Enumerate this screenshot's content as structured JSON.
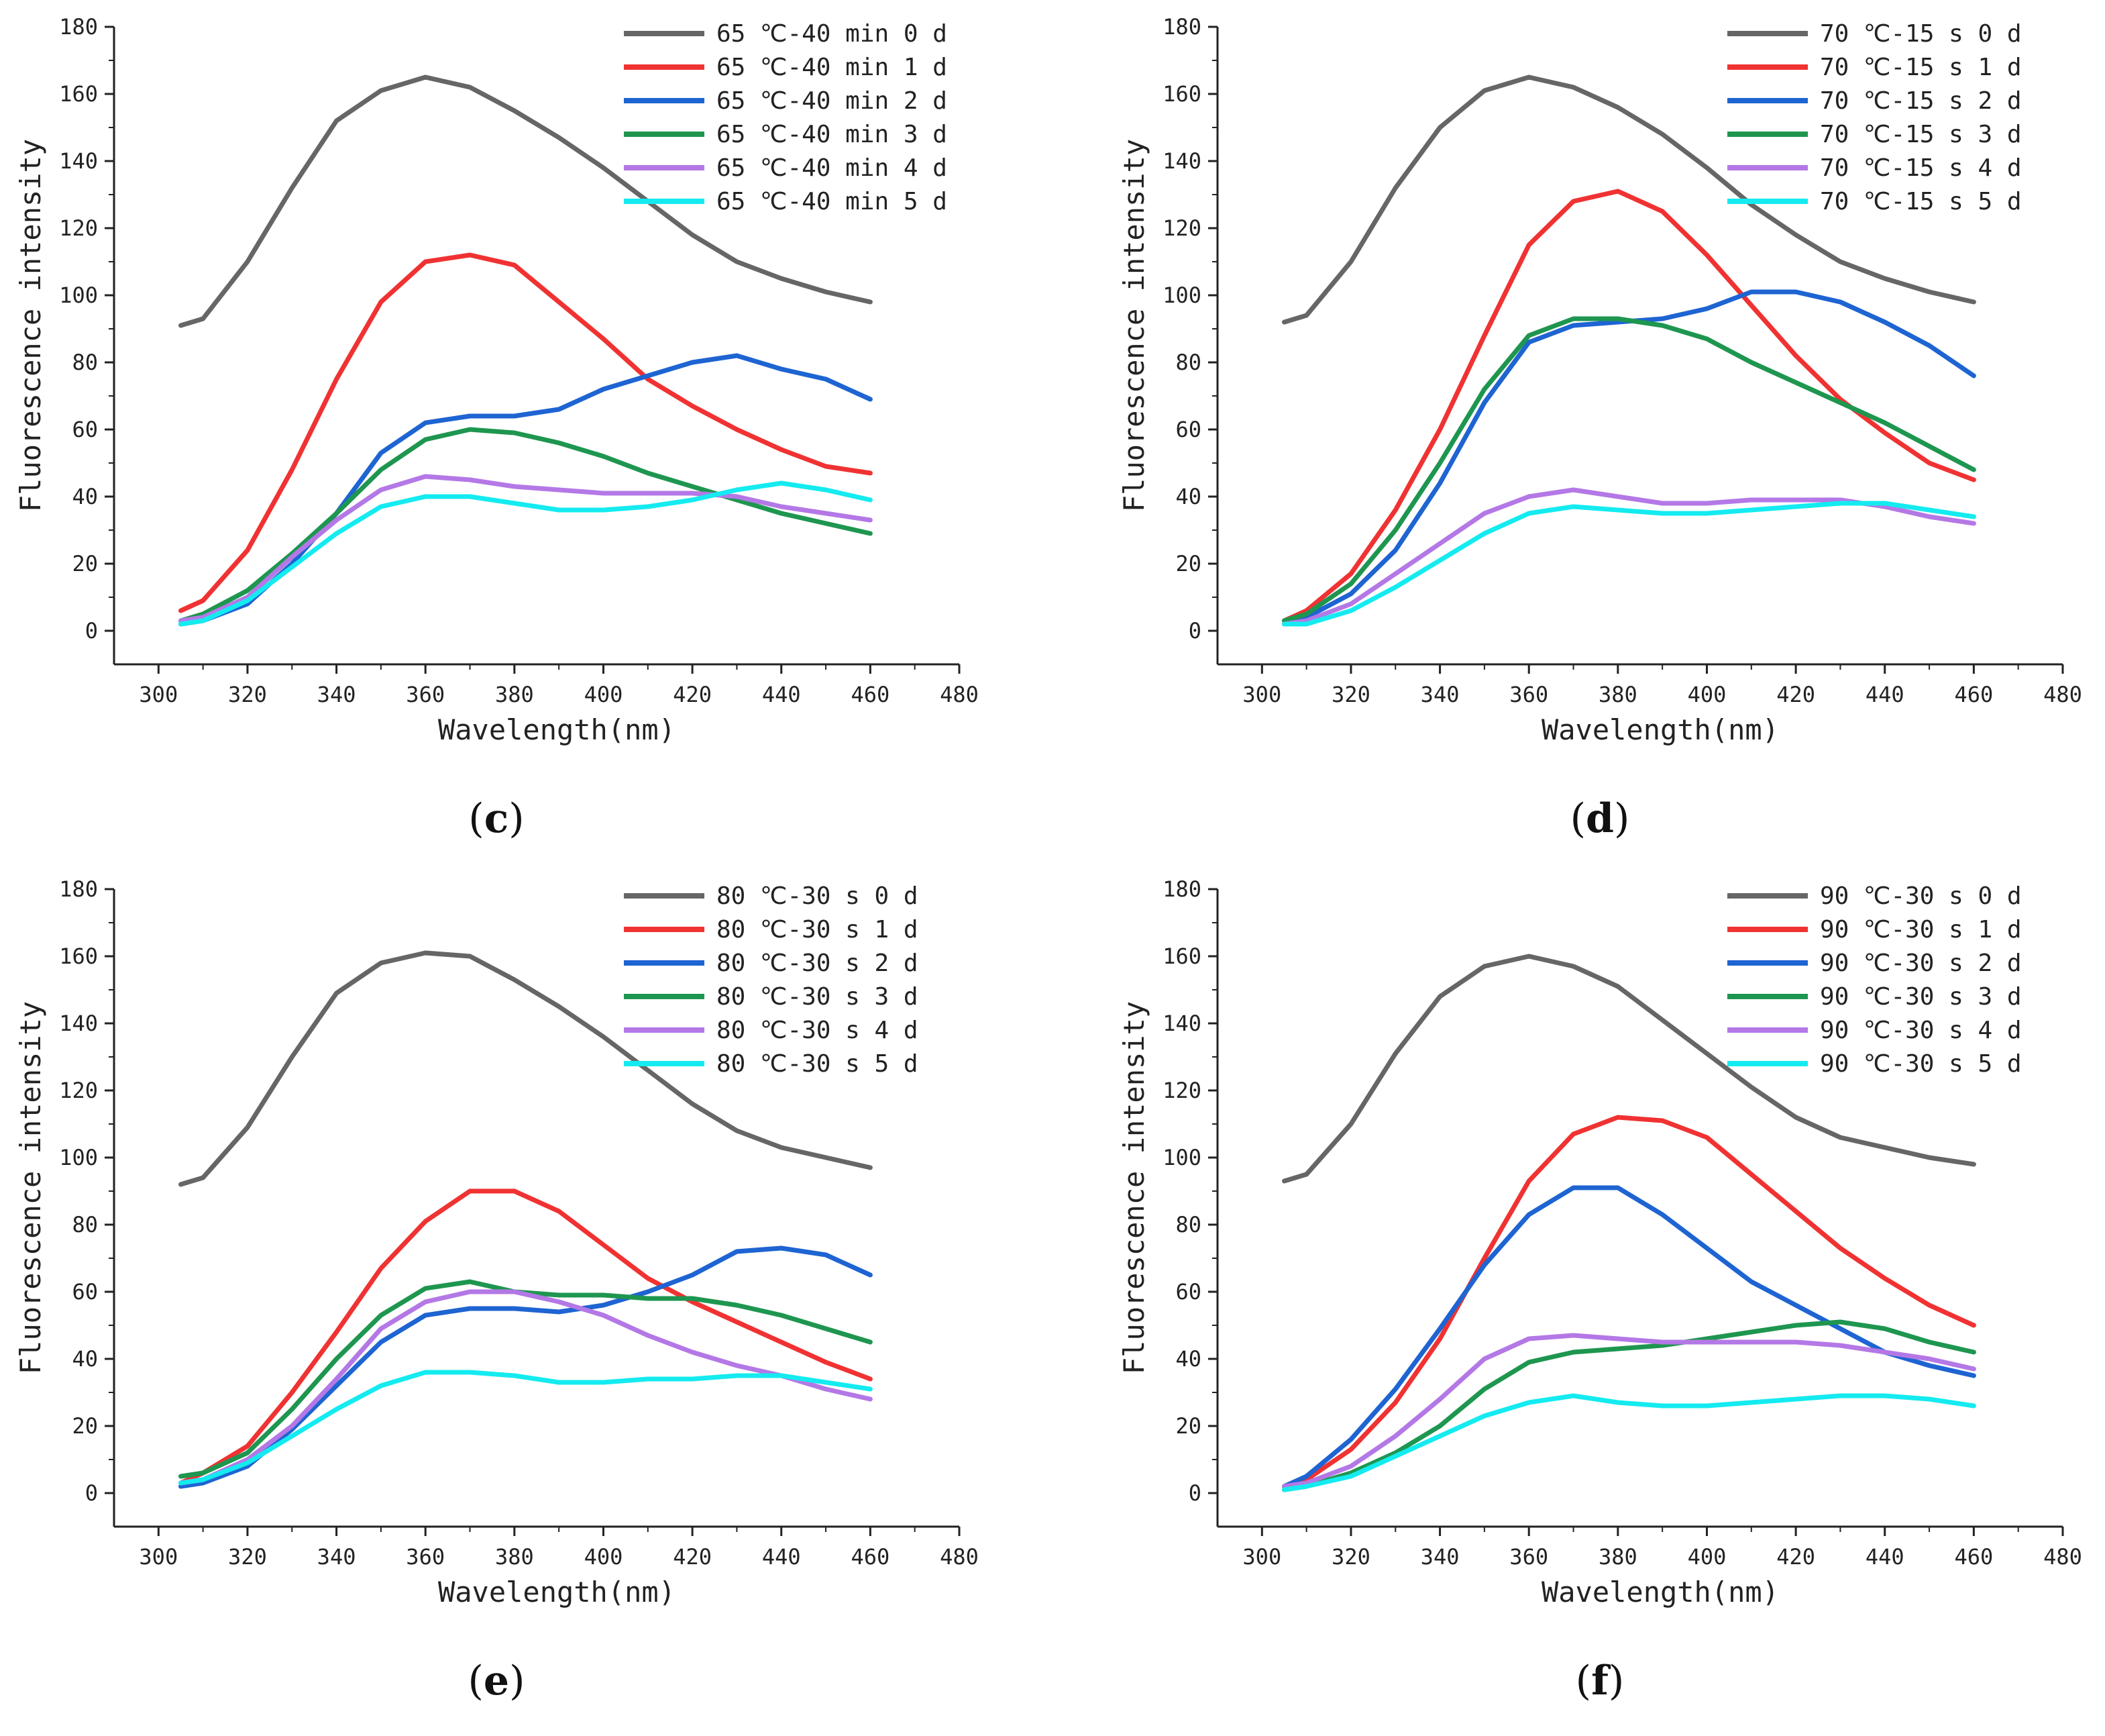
{
  "chart_data": [
    {
      "type": "line",
      "panel_label": "c",
      "xlabel": "Wavelength(nm)",
      "ylabel": "Fluorescence intensity",
      "xlim": [
        290,
        480
      ],
      "ylim": [
        -10,
        180
      ],
      "xticks": [
        300,
        320,
        340,
        360,
        380,
        400,
        420,
        440,
        460,
        480
      ],
      "yticks": [
        0,
        20,
        40,
        60,
        80,
        100,
        120,
        140,
        160,
        180
      ],
      "legend_position": "top-right",
      "x": [
        305,
        310,
        320,
        330,
        340,
        350,
        360,
        370,
        380,
        390,
        400,
        410,
        420,
        430,
        440,
        450,
        460
      ],
      "series": [
        {
          "name": "65 ℃-40 min 0 d",
          "color": "#666666",
          "values": [
            91,
            93,
            110,
            132,
            152,
            161,
            165,
            162,
            155,
            147,
            138,
            128,
            118,
            110,
            105,
            101,
            98
          ]
        },
        {
          "name": "65 ℃-40 min 1 d",
          "color": "#f03232",
          "values": [
            6,
            9,
            24,
            48,
            75,
            98,
            110,
            112,
            109,
            98,
            87,
            75,
            67,
            60,
            54,
            49,
            47
          ]
        },
        {
          "name": "65 ℃-40 min 2 d",
          "color": "#1e64d2",
          "values": [
            2,
            3,
            8,
            20,
            35,
            53,
            62,
            64,
            64,
            66,
            72,
            76,
            80,
            82,
            78,
            75,
            69
          ]
        },
        {
          "name": "65 ℃-40 min 3 d",
          "color": "#1e9650",
          "values": [
            3,
            5,
            12,
            23,
            35,
            48,
            57,
            60,
            59,
            56,
            52,
            47,
            43,
            39,
            35,
            32,
            29
          ]
        },
        {
          "name": "65 ℃-40 min 4 d",
          "color": "#b478e6",
          "values": [
            3,
            4,
            10,
            22,
            33,
            42,
            46,
            45,
            43,
            42,
            41,
            41,
            41,
            40,
            37,
            35,
            33
          ]
        },
        {
          "name": "65 ℃-40 min 5 d",
          "color": "#14ebf0",
          "values": [
            2,
            3,
            9,
            19,
            29,
            37,
            40,
            40,
            38,
            36,
            36,
            37,
            39,
            42,
            44,
            42,
            39
          ]
        }
      ]
    },
    {
      "type": "line",
      "panel_label": "d",
      "xlabel": "Wavelength(nm)",
      "ylabel": "Fluorescence intensity",
      "xlim": [
        290,
        480
      ],
      "ylim": [
        -10,
        180
      ],
      "xticks": [
        300,
        320,
        340,
        360,
        380,
        400,
        420,
        440,
        460,
        480
      ],
      "yticks": [
        0,
        20,
        40,
        60,
        80,
        100,
        120,
        140,
        160,
        180
      ],
      "legend_position": "top-right",
      "x": [
        305,
        310,
        320,
        330,
        340,
        350,
        360,
        370,
        380,
        390,
        400,
        410,
        420,
        430,
        440,
        450,
        460
      ],
      "series": [
        {
          "name": "70 ℃-15 s 0 d",
          "color": "#666666",
          "values": [
            92,
            94,
            110,
            132,
            150,
            161,
            165,
            162,
            156,
            148,
            138,
            127,
            118,
            110,
            105,
            101,
            98
          ]
        },
        {
          "name": "70 ℃-15 s 1 d",
          "color": "#f03232",
          "values": [
            3,
            6,
            17,
            36,
            60,
            88,
            115,
            128,
            131,
            125,
            112,
            97,
            82,
            69,
            59,
            50,
            45
          ]
        },
        {
          "name": "70 ℃-15 s 2 d",
          "color": "#1e64d2",
          "values": [
            2,
            4,
            11,
            24,
            44,
            68,
            86,
            91,
            92,
            93,
            96,
            101,
            101,
            98,
            92,
            85,
            76
          ]
        },
        {
          "name": "70 ℃-15 s 3 d",
          "color": "#1e9650",
          "values": [
            3,
            5,
            14,
            30,
            50,
            72,
            88,
            93,
            93,
            91,
            87,
            80,
            74,
            68,
            62,
            55,
            48
          ]
        },
        {
          "name": "70 ℃-15 s 4 d",
          "color": "#b478e6",
          "values": [
            2,
            3,
            8,
            17,
            26,
            35,
            40,
            42,
            40,
            38,
            38,
            39,
            39,
            39,
            37,
            34,
            32
          ]
        },
        {
          "name": "70 ℃-15 s 5 d",
          "color": "#14ebf0",
          "values": [
            2,
            2,
            6,
            13,
            21,
            29,
            35,
            37,
            36,
            35,
            35,
            36,
            37,
            38,
            38,
            36,
            34
          ]
        }
      ]
    },
    {
      "type": "line",
      "panel_label": "e",
      "xlabel": "Wavelength(nm)",
      "ylabel": "Fluorescence intensity",
      "xlim": [
        290,
        480
      ],
      "ylim": [
        -10,
        180
      ],
      "xticks": [
        300,
        320,
        340,
        360,
        380,
        400,
        420,
        440,
        460,
        480
      ],
      "yticks": [
        0,
        20,
        40,
        60,
        80,
        100,
        120,
        140,
        160,
        180
      ],
      "legend_position": "top-right",
      "x": [
        305,
        310,
        320,
        330,
        340,
        350,
        360,
        370,
        380,
        390,
        400,
        410,
        420,
        430,
        440,
        450,
        460
      ],
      "series": [
        {
          "name": "80 ℃-30 s 0 d",
          "color": "#666666",
          "values": [
            92,
            94,
            109,
            130,
            149,
            158,
            161,
            160,
            153,
            145,
            136,
            126,
            116,
            108,
            103,
            100,
            97
          ]
        },
        {
          "name": "80 ℃-30 s 1 d",
          "color": "#f03232",
          "values": [
            3,
            6,
            14,
            30,
            48,
            67,
            81,
            90,
            90,
            84,
            74,
            64,
            57,
            51,
            45,
            39,
            34
          ]
        },
        {
          "name": "80 ℃-30 s 2 d",
          "color": "#1e64d2",
          "values": [
            2,
            3,
            8,
            19,
            32,
            45,
            53,
            55,
            55,
            54,
            56,
            60,
            65,
            72,
            73,
            71,
            65
          ]
        },
        {
          "name": "80 ℃-30 s 3 d",
          "color": "#1e9650",
          "values": [
            5,
            6,
            12,
            25,
            40,
            53,
            61,
            63,
            60,
            59,
            59,
            58,
            58,
            56,
            53,
            49,
            45
          ]
        },
        {
          "name": "80 ℃-30 s 4 d",
          "color": "#b478e6",
          "values": [
            3,
            4,
            10,
            20,
            34,
            49,
            57,
            60,
            60,
            57,
            53,
            47,
            42,
            38,
            35,
            31,
            28
          ]
        },
        {
          "name": "80 ℃-30 s 5 d",
          "color": "#14ebf0",
          "values": [
            3,
            4,
            9,
            17,
            25,
            32,
            36,
            36,
            35,
            33,
            33,
            34,
            34,
            35,
            35,
            33,
            31
          ]
        }
      ]
    },
    {
      "type": "line",
      "panel_label": "f",
      "xlabel": "Wavelength(nm)",
      "ylabel": "Fluorescence intensity",
      "xlim": [
        290,
        480
      ],
      "ylim": [
        -10,
        180
      ],
      "xticks": [
        300,
        320,
        340,
        360,
        380,
        400,
        420,
        440,
        460,
        480
      ],
      "yticks": [
        0,
        20,
        40,
        60,
        80,
        100,
        120,
        140,
        160,
        180
      ],
      "legend_position": "top-right",
      "x": [
        305,
        310,
        320,
        330,
        340,
        350,
        360,
        370,
        380,
        390,
        400,
        410,
        420,
        430,
        440,
        450,
        460
      ],
      "series": [
        {
          "name": "90 ℃-30 s 0 d",
          "color": "#666666",
          "values": [
            93,
            95,
            110,
            131,
            148,
            157,
            160,
            157,
            151,
            141,
            131,
            121,
            112,
            106,
            103,
            100,
            98
          ]
        },
        {
          "name": "90 ℃-30 s 1 d",
          "color": "#f03232",
          "values": [
            2,
            4,
            13,
            27,
            46,
            70,
            93,
            107,
            112,
            111,
            106,
            95,
            84,
            73,
            64,
            56,
            50
          ]
        },
        {
          "name": "90 ℃-30 s 2 d",
          "color": "#1e64d2",
          "values": [
            2,
            5,
            16,
            31,
            49,
            68,
            83,
            91,
            91,
            83,
            73,
            63,
            56,
            49,
            42,
            38,
            35
          ]
        },
        {
          "name": "90 ℃-30 s 3 d",
          "color": "#1e9650",
          "values": [
            1,
            2,
            6,
            12,
            20,
            31,
            39,
            42,
            43,
            44,
            46,
            48,
            50,
            51,
            49,
            45,
            42
          ]
        },
        {
          "name": "90 ℃-30 s 4 d",
          "color": "#b478e6",
          "values": [
            2,
            3,
            8,
            17,
            28,
            40,
            46,
            47,
            46,
            45,
            45,
            45,
            45,
            44,
            42,
            40,
            37
          ]
        },
        {
          "name": "90 ℃-30 s 5 d",
          "color": "#14ebf0",
          "values": [
            1,
            2,
            5,
            11,
            17,
            23,
            27,
            29,
            27,
            26,
            26,
            27,
            28,
            29,
            29,
            28,
            26
          ]
        }
      ]
    }
  ]
}
